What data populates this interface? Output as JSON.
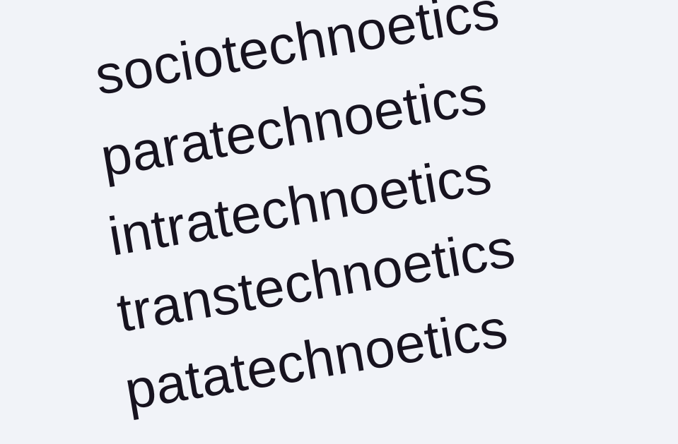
{
  "words": [
    "sociotechnoetics",
    "paratechnoetics",
    "intratechnoetics",
    "transtechnoetics",
    "patatechnoetics"
  ],
  "colors": {
    "background": "#f1f3f8",
    "text": "#17131f"
  }
}
